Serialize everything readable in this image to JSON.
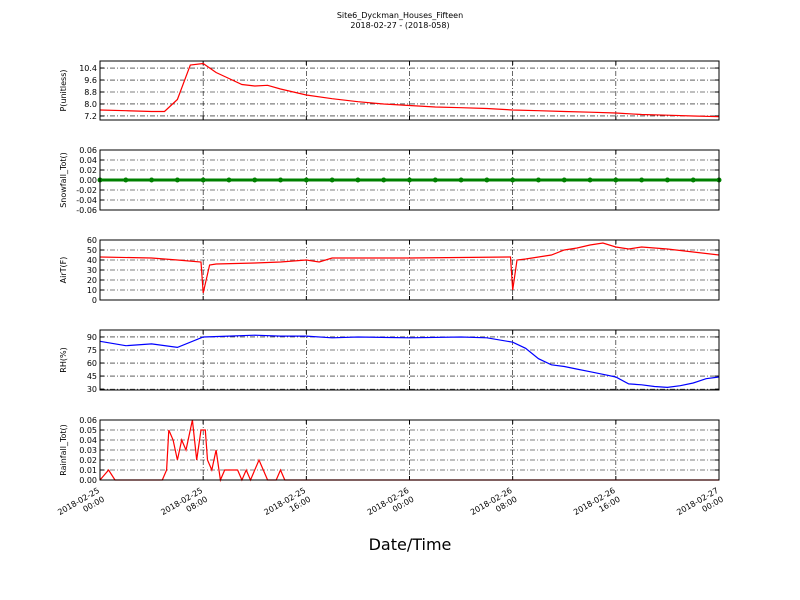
{
  "chart_data": [
    {
      "type": "line",
      "title": "Site6_Dyckman_Houses_Fifteen",
      "subtitle": "2018-02-27 - (2018-058)",
      "ylabel": "P(unitless)",
      "x": [
        "2018-02-25 00:00",
        "2018-02-25 02:00",
        "2018-02-25 04:00",
        "2018-02-25 05:00",
        "2018-02-25 06:00",
        "2018-02-25 07:00",
        "2018-02-25 08:00",
        "2018-02-25 09:00",
        "2018-02-25 10:00",
        "2018-02-25 11:00",
        "2018-02-25 12:00",
        "2018-02-25 13:00",
        "2018-02-25 14:00",
        "2018-02-25 15:00",
        "2018-02-25 16:00",
        "2018-02-25 18:00",
        "2018-02-25 20:00",
        "2018-02-25 22:00",
        "2018-02-26 00:00",
        "2018-02-26 02:00",
        "2018-02-26 04:00",
        "2018-02-26 06:00",
        "2018-02-26 08:00",
        "2018-02-26 10:00",
        "2018-02-26 12:00",
        "2018-02-26 14:00",
        "2018-02-26 16:00",
        "2018-02-26 18:00",
        "2018-02-26 20:00",
        "2018-02-26 22:00",
        "2018-02-27 00:00"
      ],
      "series": [
        {
          "color": "#ff0000",
          "values": [
            7.6,
            7.55,
            7.5,
            7.5,
            8.3,
            10.6,
            10.7,
            10.1,
            9.7,
            9.3,
            9.2,
            9.25,
            9.0,
            8.8,
            8.6,
            8.35,
            8.15,
            8.0,
            7.9,
            7.8,
            7.75,
            7.7,
            7.6,
            7.55,
            7.5,
            7.45,
            7.4,
            7.3,
            7.25,
            7.2,
            7.15
          ]
        }
      ],
      "xlim": [
        "2018-02-25 00:00",
        "2018-02-27 00:00"
      ],
      "xticks": [
        "2018-02-25 00:00",
        "2018-02-25 08:00",
        "2018-02-25 16:00",
        "2018-02-26 00:00",
        "2018-02-26 08:00",
        "2018-02-26 16:00",
        "2018-02-27 00:00"
      ],
      "ylim": [
        6.93,
        10.87
      ],
      "yticks": [
        7.2,
        {
          "value": 8.0,
          "label": "8.0"
        },
        8.8,
        9.6,
        10.4
      ],
      "grid": true
    },
    {
      "type": "line",
      "ylabel": "Snowfall_Tot()",
      "markers": true,
      "x": [
        "2018-02-25 00:00",
        "2018-02-25 02:00",
        "2018-02-25 04:00",
        "2018-02-25 06:00",
        "2018-02-25 08:00",
        "2018-02-25 10:00",
        "2018-02-25 12:00",
        "2018-02-25 14:00",
        "2018-02-25 16:00",
        "2018-02-25 18:00",
        "2018-02-25 20:00",
        "2018-02-25 22:00",
        "2018-02-26 00:00",
        "2018-02-26 02:00",
        "2018-02-26 04:00",
        "2018-02-26 06:00",
        "2018-02-26 08:00",
        "2018-02-26 10:00",
        "2018-02-26 12:00",
        "2018-02-26 14:00",
        "2018-02-26 16:00",
        "2018-02-26 18:00",
        "2018-02-26 20:00",
        "2018-02-26 22:00",
        "2018-02-27 00:00"
      ],
      "series": [
        {
          "color": "#008000",
          "values": [
            0,
            0,
            0,
            0,
            0,
            0,
            0,
            0,
            0,
            0,
            0,
            0,
            0,
            0,
            0,
            0,
            0,
            0,
            0,
            0,
            0,
            0,
            0,
            0,
            0
          ]
        }
      ],
      "xlim": [
        "2018-02-25 00:00",
        "2018-02-27 00:00"
      ],
      "xticks": [
        "2018-02-25 00:00",
        "2018-02-25 08:00",
        "2018-02-25 16:00",
        "2018-02-26 00:00",
        "2018-02-26 08:00",
        "2018-02-26 16:00",
        "2018-02-27 00:00"
      ],
      "ylim": [
        -0.06,
        0.06
      ],
      "yticks": [
        -0.06,
        -0.04,
        -0.02,
        {
          "value": 0,
          "label": "0.00"
        },
        0.02,
        0.04,
        0.06
      ],
      "grid": true
    },
    {
      "type": "line",
      "ylabel": "AirT(F)",
      "x": [
        "2018-02-25 00:00",
        "2018-02-25 04:00",
        "2018-02-25 06:00",
        "2018-02-25 07:50",
        "2018-02-25 08:00",
        "2018-02-25 08:30",
        "2018-02-25 09:00",
        "2018-02-25 12:00",
        "2018-02-25 14:00",
        "2018-02-25 16:00",
        "2018-02-25 17:00",
        "2018-02-25 18:00",
        "2018-02-26 00:00",
        "2018-02-26 07:50",
        "2018-02-26 08:00",
        "2018-02-26 08:20",
        "2018-02-26 09:00",
        "2018-02-26 10:00",
        "2018-02-26 11:00",
        "2018-02-26 12:00",
        "2018-02-26 13:00",
        "2018-02-26 14:00",
        "2018-02-26 15:00",
        "2018-02-26 16:00",
        "2018-02-26 17:00",
        "2018-02-26 18:00",
        "2018-02-26 20:00",
        "2018-02-26 22:00",
        "2018-02-27 00:00"
      ],
      "series": [
        {
          "color": "#ff0000",
          "values": [
            43,
            42,
            40,
            38,
            7,
            35,
            36,
            37,
            38,
            40,
            38,
            42,
            42,
            43,
            10,
            40,
            41,
            43,
            45,
            50,
            52,
            55,
            57,
            53,
            51,
            53,
            51,
            48,
            45
          ]
        }
      ],
      "xlim": [
        "2018-02-25 00:00",
        "2018-02-27 00:00"
      ],
      "xticks": [
        "2018-02-25 00:00",
        "2018-02-25 08:00",
        "2018-02-25 16:00",
        "2018-02-26 00:00",
        "2018-02-26 08:00",
        "2018-02-26 16:00",
        "2018-02-27 00:00"
      ],
      "ylim": [
        0,
        60
      ],
      "yticks": [
        0,
        10,
        20,
        30,
        40,
        50,
        60
      ],
      "grid": true
    },
    {
      "type": "line",
      "ylabel": "RH(%)",
      "x": [
        "2018-02-25 00:00",
        "2018-02-25 02:00",
        "2018-02-25 04:00",
        "2018-02-25 06:00",
        "2018-02-25 08:00",
        "2018-02-25 10:00",
        "2018-02-25 12:00",
        "2018-02-25 14:00",
        "2018-02-25 16:00",
        "2018-02-25 18:00",
        "2018-02-25 20:00",
        "2018-02-26 00:00",
        "2018-02-26 04:00",
        "2018-02-26 06:00",
        "2018-02-26 08:00",
        "2018-02-26 09:00",
        "2018-02-26 10:00",
        "2018-02-26 11:00",
        "2018-02-26 12:00",
        "2018-02-26 13:00",
        "2018-02-26 14:00",
        "2018-02-26 15:00",
        "2018-02-26 16:00",
        "2018-02-26 17:00",
        "2018-02-26 18:00",
        "2018-02-26 19:00",
        "2018-02-26 20:00",
        "2018-02-26 21:00",
        "2018-02-26 22:00",
        "2018-02-26 23:00",
        "2018-02-27 00:00"
      ],
      "series": [
        {
          "color": "#0000ff",
          "values": [
            85,
            80,
            82,
            78,
            90,
            91,
            92,
            91,
            91,
            89,
            90,
            89,
            90,
            89,
            84,
            77,
            65,
            58,
            56,
            53,
            50,
            47,
            44,
            36,
            35,
            33,
            32,
            34,
            37,
            42,
            44
          ]
        }
      ],
      "xlim": [
        "2018-02-25 00:00",
        "2018-02-27 00:00"
      ],
      "xticks": [
        "2018-02-25 00:00",
        "2018-02-25 08:00",
        "2018-02-25 16:00",
        "2018-02-26 00:00",
        "2018-02-26 08:00",
        "2018-02-26 16:00",
        "2018-02-27 00:00"
      ],
      "ylim": [
        29,
        98
      ],
      "yticks": [
        30,
        45,
        60,
        75,
        90
      ],
      "grid": true
    },
    {
      "type": "line",
      "ylabel": "Rainfall_Tot()",
      "xlabel": "Date/Time",
      "x": [
        "2018-02-25 00:00",
        "2018-02-25 00:40",
        "2018-02-25 01:10",
        "2018-02-25 04:50",
        "2018-02-25 05:10",
        "2018-02-25 05:20",
        "2018-02-25 05:40",
        "2018-02-25 06:00",
        "2018-02-25 06:20",
        "2018-02-25 06:40",
        "2018-02-25 07:10",
        "2018-02-25 07:30",
        "2018-02-25 07:50",
        "2018-02-25 08:10",
        "2018-02-25 08:20",
        "2018-02-25 08:40",
        "2018-02-25 09:00",
        "2018-02-25 09:20",
        "2018-02-25 09:40",
        "2018-02-25 10:40",
        "2018-02-25 11:00",
        "2018-02-25 11:20",
        "2018-02-25 11:40",
        "2018-02-25 12:20",
        "2018-02-25 12:40",
        "2018-02-25 13:00",
        "2018-02-25 13:40",
        "2018-02-25 14:00",
        "2018-02-25 14:20",
        "2018-02-27 00:00"
      ],
      "series": [
        {
          "color": "#ff0000",
          "values": [
            0,
            0.01,
            0,
            0,
            0.01,
            0.05,
            0.04,
            0.02,
            0.04,
            0.03,
            0.06,
            0.02,
            0.05,
            0.05,
            0.02,
            0.01,
            0.03,
            0,
            0.01,
            0.01,
            0,
            0.01,
            0,
            0.02,
            0.01,
            0,
            0,
            0.01,
            0,
            0
          ]
        }
      ],
      "xlim": [
        "2018-02-25 00:00",
        "2018-02-27 00:00"
      ],
      "xticks": [
        "2018-02-25 00:00",
        "2018-02-25 08:00",
        "2018-02-25 16:00",
        "2018-02-26 00:00",
        "2018-02-26 08:00",
        "2018-02-26 16:00",
        "2018-02-27 00:00"
      ],
      "ylim": [
        0,
        0.06
      ],
      "yticks": [
        {
          "value": 0,
          "label": "0.00"
        },
        0.01,
        0.02,
        0.03,
        0.04,
        0.05,
        0.06
      ],
      "grid": true
    }
  ]
}
